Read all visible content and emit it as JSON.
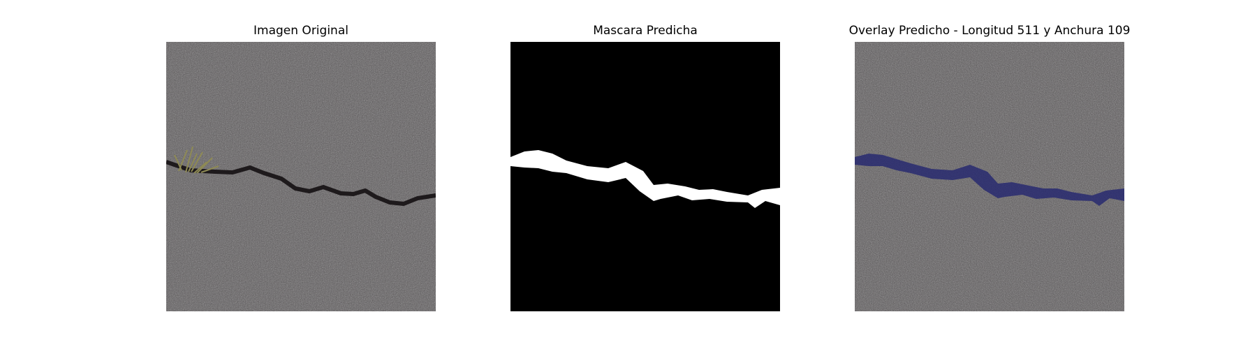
{
  "panels": [
    {
      "title": "Imagen Original",
      "kind": "photo"
    },
    {
      "title": "Mascara Predicha",
      "kind": "mask"
    },
    {
      "title": "Overlay Predicho - Longitud 511 y Anchura 109",
      "kind": "overlay"
    }
  ],
  "colors": {
    "background": "#ffffff",
    "asphalt": "#4f4b4d",
    "crack": "#1e1a1c",
    "grass": "#8e8a55",
    "mask_background": "#000000",
    "mask_foreground": "#ffffff",
    "overlay_tint": "#23256f"
  }
}
